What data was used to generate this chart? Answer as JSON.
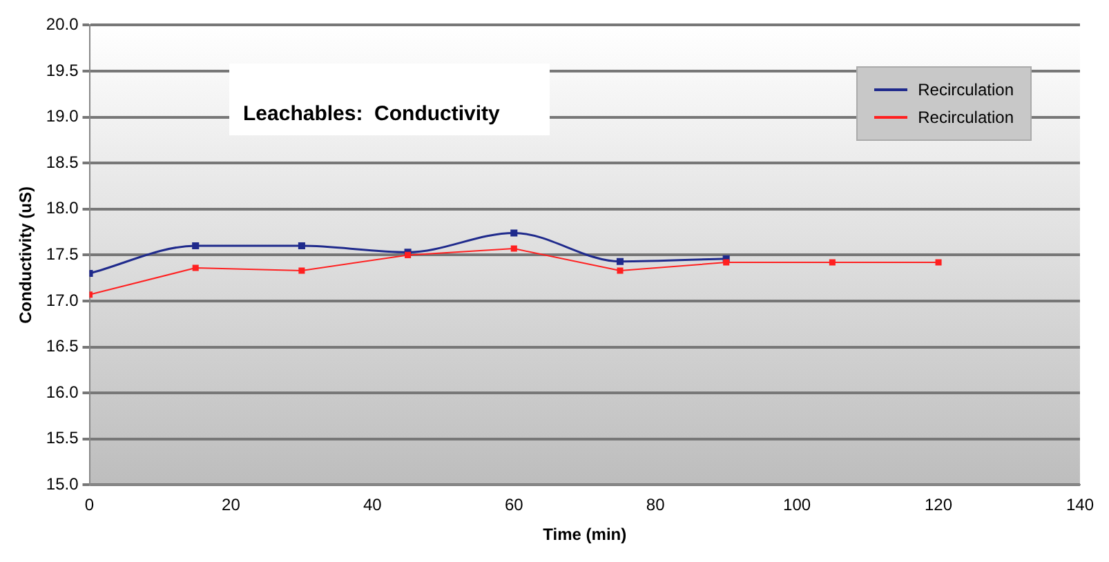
{
  "chart_data": {
    "type": "line",
    "title": "Leachables:  Conductivity",
    "xlabel": "Time (min)",
    "ylabel": "Conductivity (uS)",
    "x": [
      0,
      15,
      30,
      45,
      60,
      75,
      90,
      105,
      120
    ],
    "series": [
      {
        "name": "Recirculation",
        "color": "#1f2a8c",
        "values": [
          17.3,
          17.6,
          17.6,
          17.53,
          17.74,
          17.43,
          17.46,
          null,
          null
        ]
      },
      {
        "name": "Recirculation",
        "color": "#ff2020",
        "values": [
          17.07,
          17.36,
          17.33,
          17.5,
          17.57,
          17.33,
          17.42,
          17.42,
          17.42
        ]
      }
    ],
    "xlim": [
      0,
      140
    ],
    "xticks": [
      0,
      20,
      40,
      60,
      80,
      100,
      120,
      140
    ],
    "ylim": [
      15,
      20
    ],
    "yticks": [
      {
        "value": 15,
        "label": "15.0"
      },
      {
        "value": 15.5,
        "label": "15.5"
      },
      {
        "value": 16,
        "label": "16.0"
      },
      {
        "value": 16.5,
        "label": "16.5"
      },
      {
        "value": 17,
        "label": "17.0"
      },
      {
        "value": 17.5,
        "label": "17.5"
      },
      {
        "value": 18,
        "label": "18.0"
      },
      {
        "value": 18.5,
        "label": "18.5"
      },
      {
        "value": 19,
        "label": "19.0"
      },
      {
        "value": 19.5,
        "label": "19.5"
      },
      {
        "value": 20,
        "label": "20.0"
      }
    ],
    "grid": "y",
    "legend": "top right",
    "marker": "square",
    "line_style": "solid"
  }
}
